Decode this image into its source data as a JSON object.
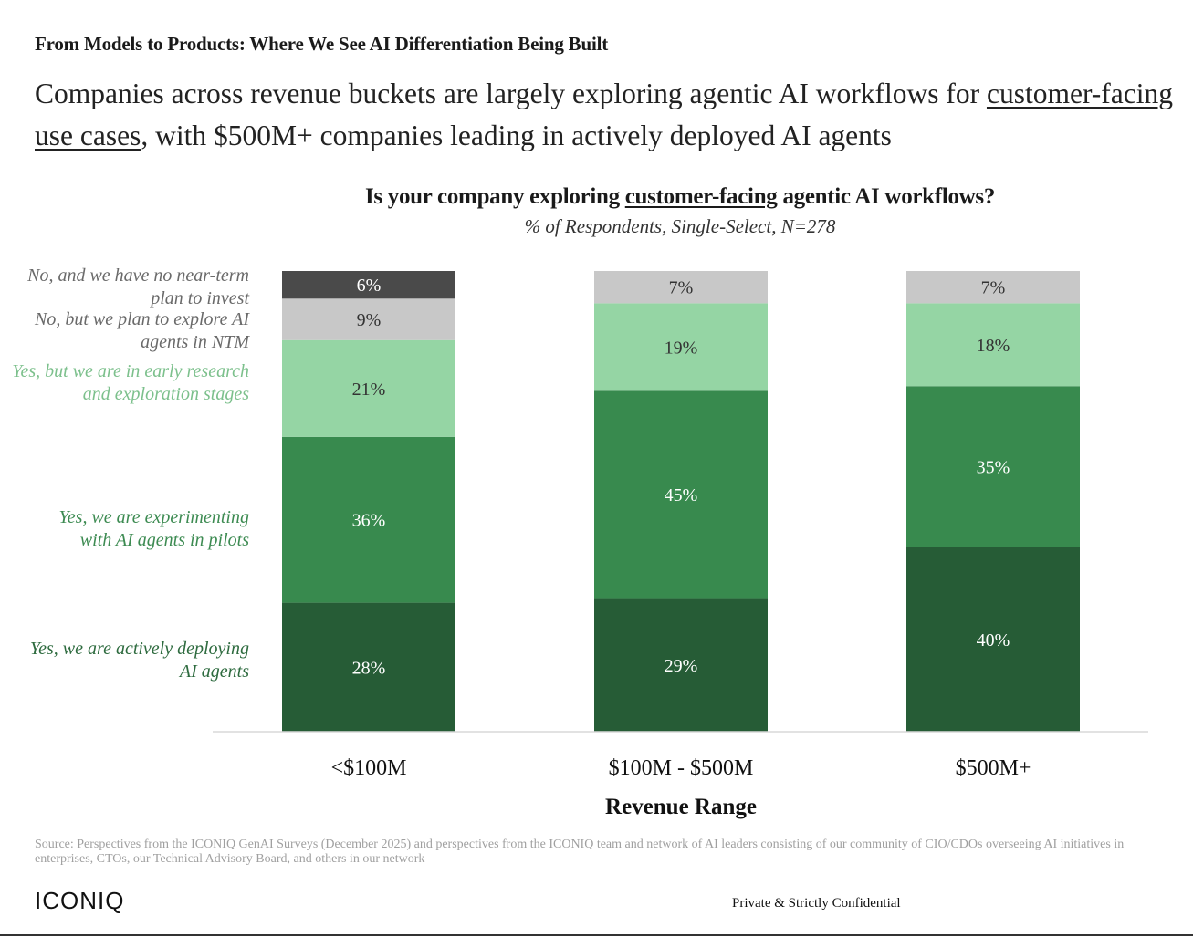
{
  "header": {
    "kicker": "From Models to Products: Where We See AI Differentiation Being Built",
    "headline_part1": "Companies across revenue buckets are largely exploring agentic AI workflows for ",
    "headline_underlined": "customer-facing use cases",
    "headline_part2": ", with $500M+ companies leading in actively deployed AI agents"
  },
  "chart_data": {
    "type": "bar",
    "stacked": true,
    "title_part1": "Is your company exploring ",
    "title_underlined": "customer-facing",
    "title_part2": " agentic AI workflows?",
    "subtitle": "% of Respondents, Single-Select, N=278",
    "xlabel": "Revenue Range",
    "ylabel": "",
    "ylim": [
      0,
      100
    ],
    "categories": [
      "<$100M",
      "$100M - $500M",
      "$500M+"
    ],
    "series": [
      {
        "name": "Yes, we are actively  deploying\nAI agents",
        "color": "#265c36",
        "label_color": "#2e6b3f",
        "values": [
          28,
          29,
          40
        ]
      },
      {
        "name": "Yes, we are experimenting\nwith AI agents in pilots",
        "color": "#388a4e",
        "label_color": "#3d8b52",
        "values": [
          36,
          45,
          35
        ]
      },
      {
        "name": "Yes, but we are in early research\nand exploration stages",
        "color": "#95d5a4",
        "label_color": "#7cc08c",
        "values": [
          21,
          19,
          18
        ]
      },
      {
        "name": "No, but we plan to explore AI\nagents in NTM",
        "color": "#c8c8c8",
        "label_color": "#6a6a6a",
        "values": [
          9,
          7,
          7
        ]
      },
      {
        "name": "No, and we have no near-term\nplan to invest",
        "color": "#4a4a4a",
        "label_color": "#6a6a6a",
        "values": [
          6,
          0,
          0
        ]
      }
    ]
  },
  "footer": {
    "source": "Source: Perspectives from the ICONIQ GenAI Surveys (December 2025) and perspectives from the ICONIQ team and network of AI leaders consisting of our community of CIO/CDOs overseeing AI initiatives in enterprises, CTOs, our Technical Advisory Board, and others in our network",
    "logo": "ICONIQ",
    "confidential": "Private & Strictly Confidential"
  }
}
